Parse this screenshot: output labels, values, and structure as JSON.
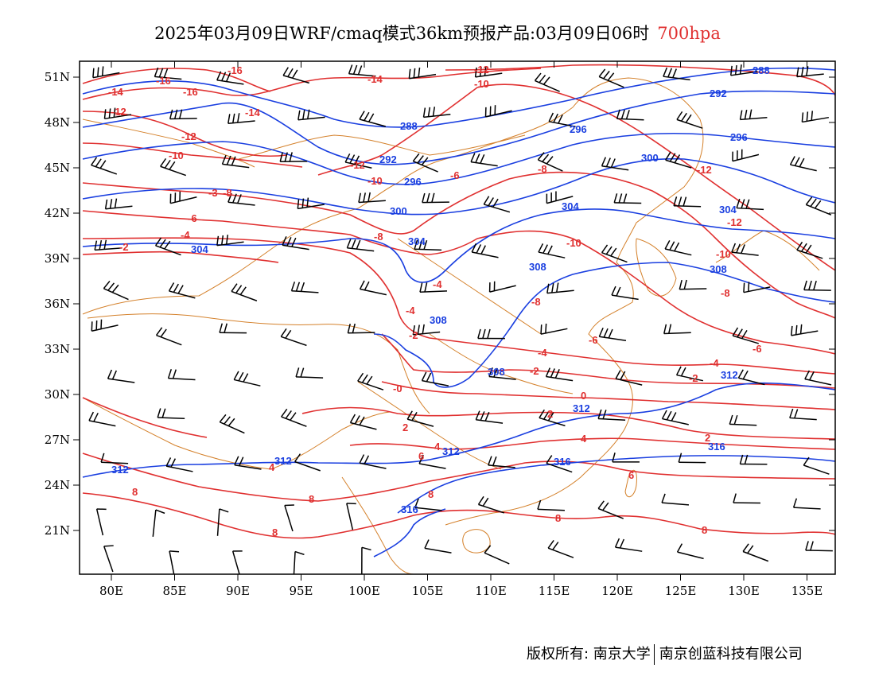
{
  "header": {
    "title": "2025年03月09日WRF/cmaq模式36km预报产品:03月09日06时",
    "level": "700hpa"
  },
  "axes": {
    "x_ticks": [
      "80E",
      "85E",
      "90E",
      "95E",
      "100E",
      "105E",
      "110E",
      "115E",
      "120E",
      "125E",
      "130E",
      "135E"
    ],
    "y_ticks": [
      "51N",
      "48N",
      "45N",
      "42N",
      "39N",
      "36N",
      "33N",
      "30N",
      "27N",
      "24N",
      "21N"
    ]
  },
  "colors": {
    "temperature": "#e03030",
    "height": "#1a3fe0",
    "border": "#d4802a",
    "barb": "#000000"
  },
  "height_labels": [
    "288",
    "292",
    "296",
    "300",
    "304",
    "308",
    "312",
    "316"
  ],
  "temperature_labels": [
    "-16",
    "-14",
    "-12",
    "-10",
    "-8",
    "-6",
    "-4",
    "-2",
    "0",
    "2",
    "4",
    "6",
    "8"
  ],
  "footer": {
    "copyright": "版权所有: 南京大学",
    "company": "南京创蓝科技有限公司"
  }
}
